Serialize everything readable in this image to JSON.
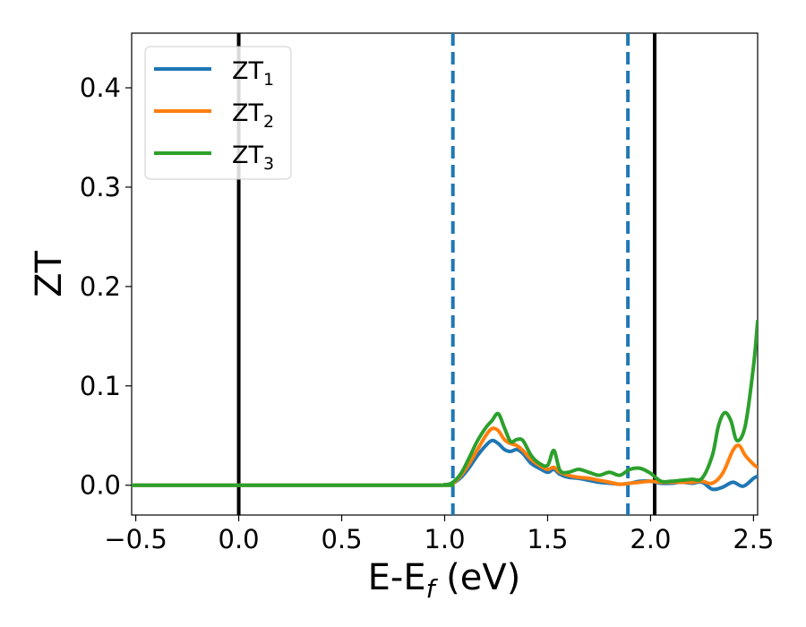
{
  "chart_data": {
    "type": "line",
    "xlabel_main": "E-E",
    "xlabel_sub": "f",
    "xlabel_tail": " (eV)",
    "ylabel": "ZT",
    "xlim": [
      -0.52,
      2.52
    ],
    "ylim": [
      -0.03,
      0.455
    ],
    "xticks": [
      -0.5,
      0.0,
      0.5,
      1.0,
      1.5,
      2.0,
      2.5
    ],
    "xtick_labels": [
      "−0.5",
      "0.0",
      "0.5",
      "1.0",
      "1.5",
      "2.0",
      "2.5"
    ],
    "yticks": [
      0.0,
      0.1,
      0.2,
      0.3,
      0.4
    ],
    "ytick_labels": [
      "0.0",
      "0.1",
      "0.2",
      "0.3",
      "0.4"
    ],
    "grid": false,
    "legend_position": "top-left",
    "vlines": [
      {
        "x": 0.0,
        "style": "solid",
        "color": "#000000"
      },
      {
        "x": 2.02,
        "style": "solid",
        "color": "#000000"
      },
      {
        "x": 1.04,
        "style": "dashed",
        "color": "#1f77b4"
      },
      {
        "x": 1.89,
        "style": "dashed",
        "color": "#1f77b4"
      }
    ],
    "series": [
      {
        "name": "ZT",
        "name_sub": "1",
        "color": "#1f77b4",
        "x": [
          -0.52,
          0.9,
          1.0,
          1.04,
          1.08,
          1.12,
          1.16,
          1.2,
          1.23,
          1.26,
          1.29,
          1.32,
          1.35,
          1.38,
          1.42,
          1.46,
          1.5,
          1.53,
          1.56,
          1.6,
          1.65,
          1.7,
          1.75,
          1.8,
          1.85,
          1.9,
          1.95,
          2.0,
          2.05,
          2.1,
          2.15,
          2.2,
          2.25,
          2.3,
          2.35,
          2.4,
          2.45,
          2.5,
          2.52
        ],
        "y": [
          0.0,
          0.0,
          0.0005,
          0.002,
          0.008,
          0.018,
          0.03,
          0.04,
          0.045,
          0.042,
          0.036,
          0.034,
          0.036,
          0.032,
          0.022,
          0.017,
          0.013,
          0.016,
          0.011,
          0.008,
          0.007,
          0.005,
          0.003,
          0.002,
          0.001,
          0.002,
          0.004,
          0.004,
          0.002,
          0.002,
          0.003,
          0.002,
          0.003,
          -0.004,
          -0.002,
          0.003,
          -0.001,
          0.007,
          0.009
        ]
      },
      {
        "name": "ZT",
        "name_sub": "2",
        "color": "#ff7f0e",
        "x": [
          -0.52,
          0.9,
          1.0,
          1.04,
          1.08,
          1.12,
          1.16,
          1.2,
          1.23,
          1.26,
          1.29,
          1.32,
          1.35,
          1.38,
          1.42,
          1.46,
          1.5,
          1.53,
          1.56,
          1.6,
          1.65,
          1.7,
          1.75,
          1.8,
          1.85,
          1.9,
          1.95,
          2.0,
          2.05,
          2.1,
          2.15,
          2.2,
          2.25,
          2.3,
          2.35,
          2.4,
          2.43,
          2.46,
          2.5,
          2.52
        ],
        "y": [
          0.0,
          0.0,
          0.0005,
          0.002,
          0.01,
          0.022,
          0.036,
          0.05,
          0.057,
          0.055,
          0.046,
          0.042,
          0.04,
          0.035,
          0.026,
          0.02,
          0.016,
          0.018,
          0.013,
          0.01,
          0.008,
          0.007,
          0.005,
          0.003,
          0.001,
          0.002,
          0.003,
          0.004,
          0.003,
          0.003,
          0.003,
          0.003,
          0.004,
          0.002,
          0.012,
          0.035,
          0.04,
          0.03,
          0.021,
          0.018
        ]
      },
      {
        "name": "ZT",
        "name_sub": "3",
        "color": "#2ca02c",
        "x": [
          -0.52,
          0.9,
          1.0,
          1.04,
          1.08,
          1.12,
          1.16,
          1.2,
          1.23,
          1.26,
          1.29,
          1.32,
          1.35,
          1.38,
          1.42,
          1.46,
          1.5,
          1.53,
          1.56,
          1.6,
          1.65,
          1.7,
          1.75,
          1.8,
          1.85,
          1.9,
          1.95,
          2.0,
          2.05,
          2.1,
          2.15,
          2.2,
          2.25,
          2.3,
          2.33,
          2.36,
          2.39,
          2.42,
          2.46,
          2.5,
          2.52
        ],
        "y": [
          0.0,
          0.0,
          0.0005,
          0.003,
          0.012,
          0.028,
          0.045,
          0.058,
          0.065,
          0.072,
          0.058,
          0.044,
          0.046,
          0.045,
          0.03,
          0.022,
          0.02,
          0.035,
          0.015,
          0.013,
          0.016,
          0.013,
          0.01,
          0.013,
          0.01,
          0.016,
          0.017,
          0.012,
          0.004,
          0.004,
          0.005,
          0.006,
          0.007,
          0.03,
          0.06,
          0.073,
          0.065,
          0.045,
          0.06,
          0.12,
          0.165
        ]
      }
    ]
  }
}
